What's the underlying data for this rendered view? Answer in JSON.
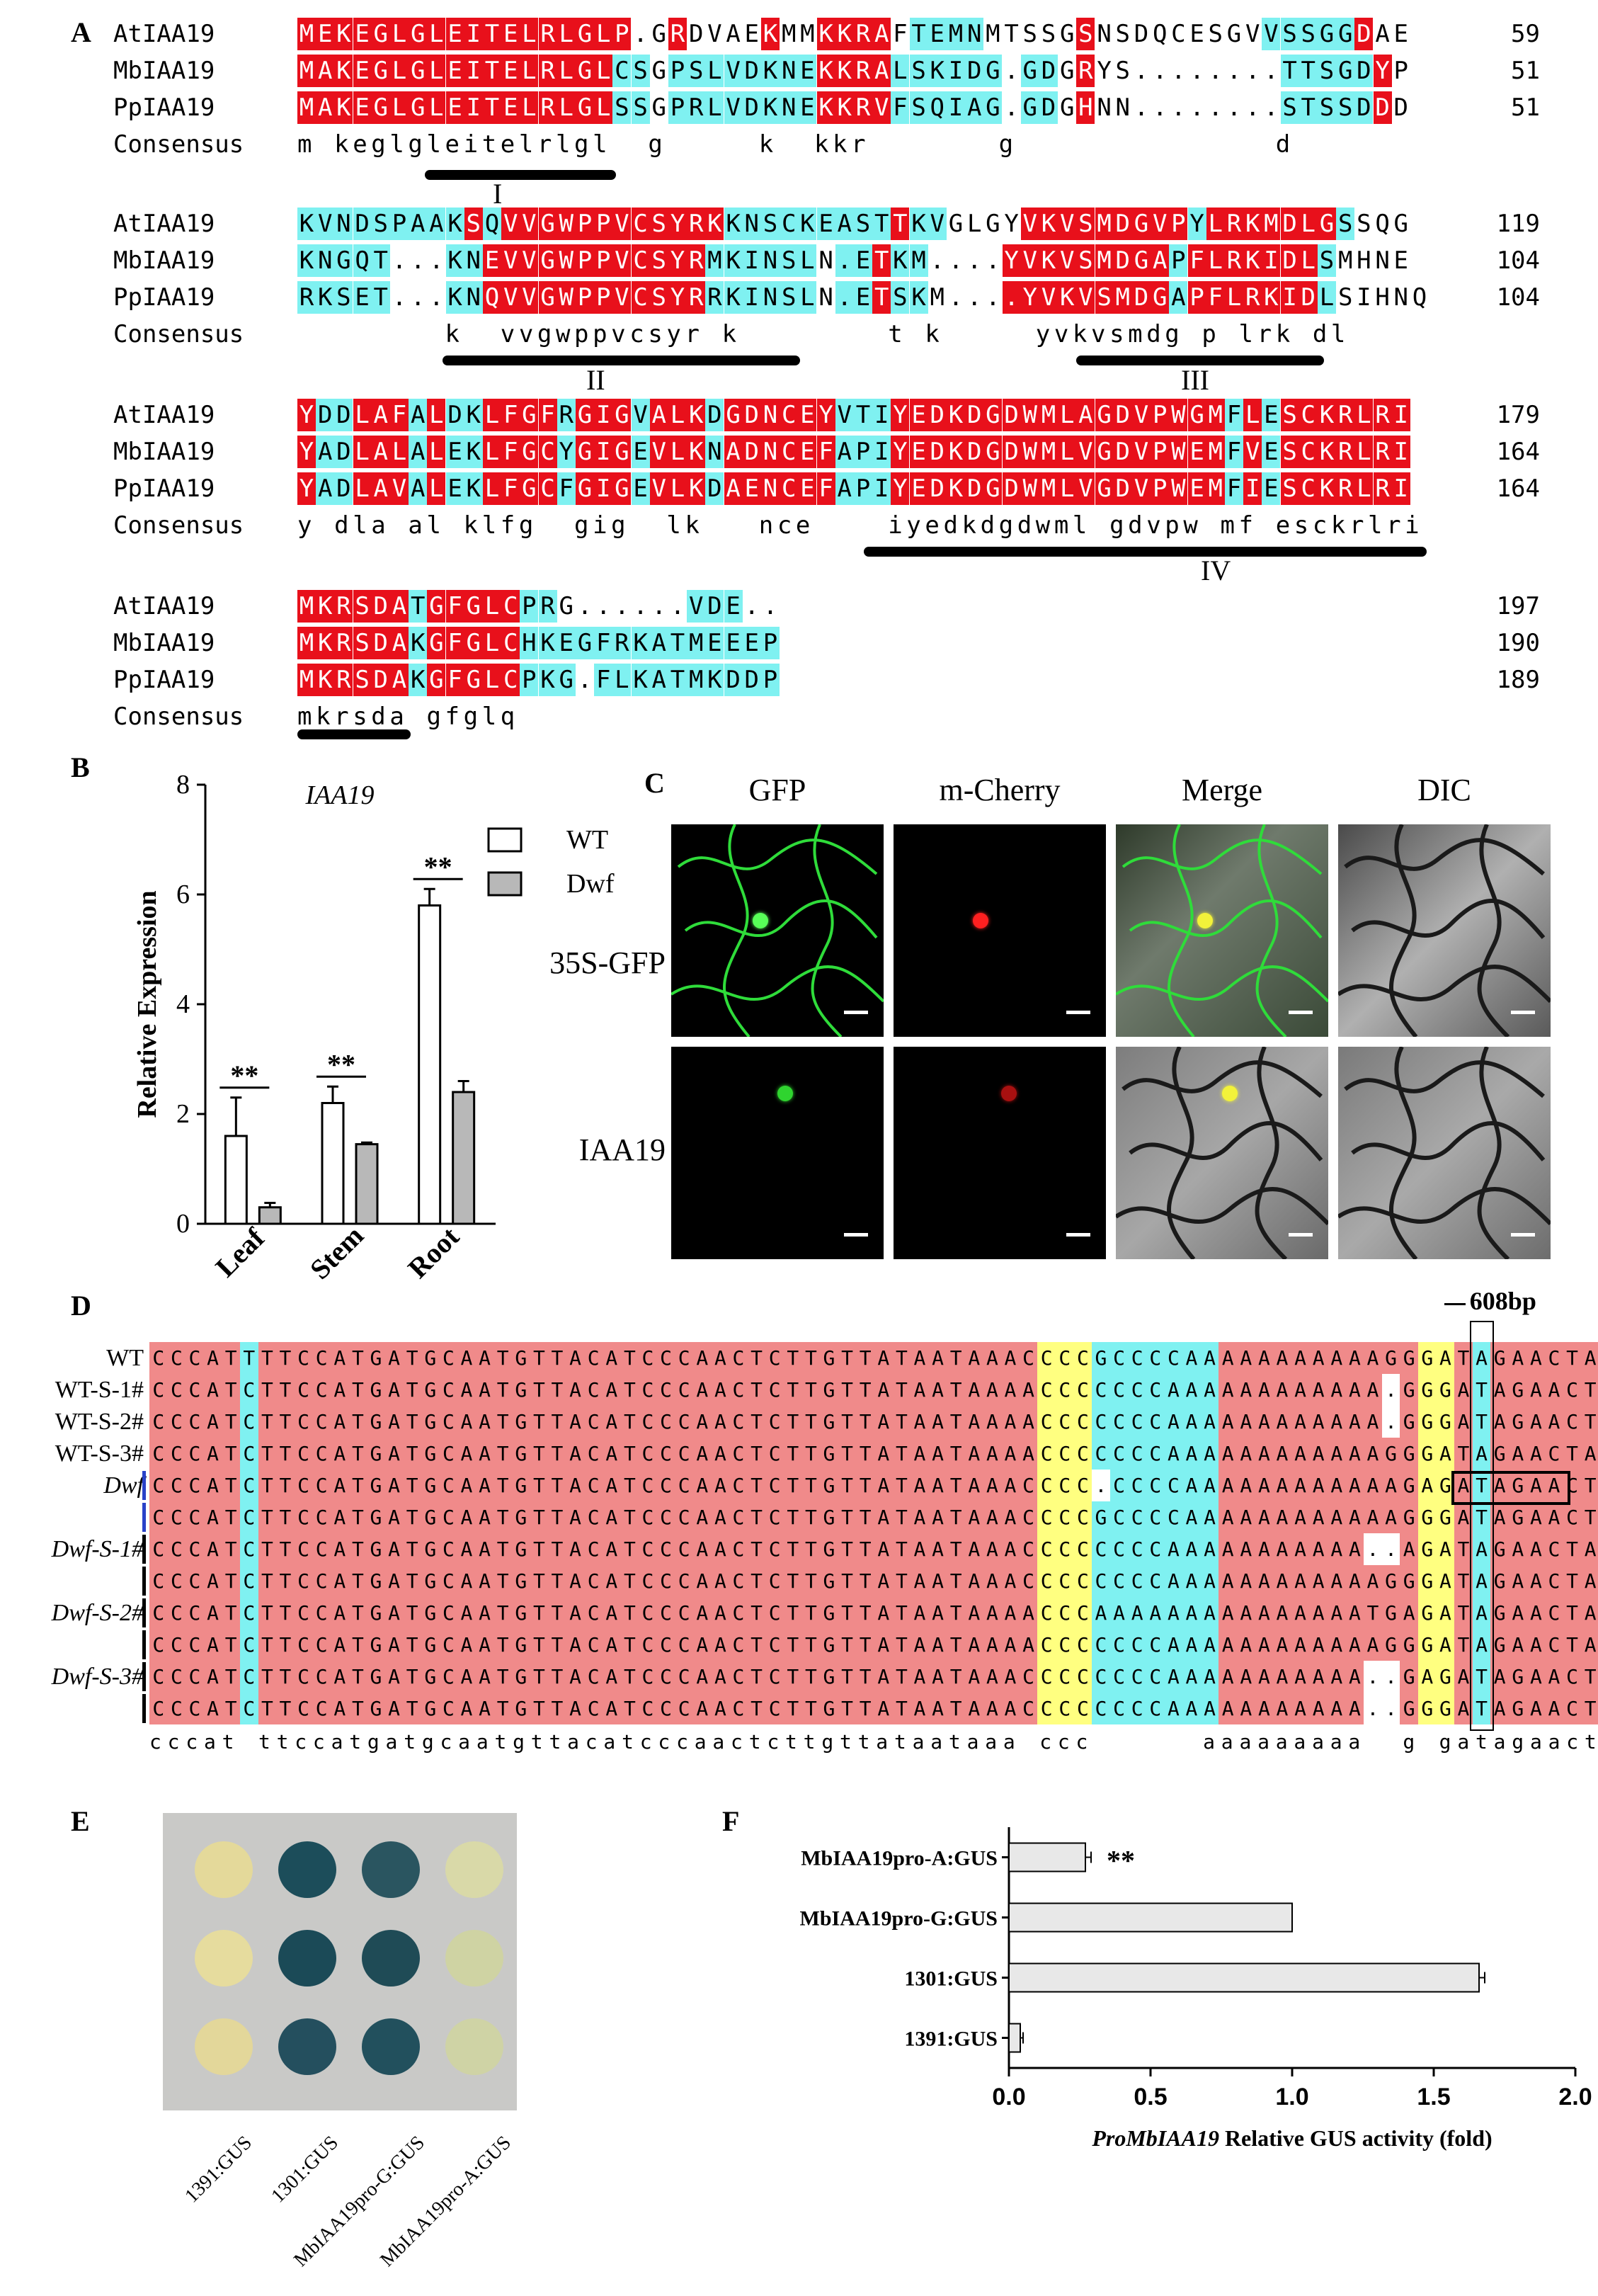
{
  "panels": {
    "A": "A",
    "B": "B",
    "C": "C",
    "D": "D",
    "E": "E",
    "F": "F"
  },
  "alignment_A": {
    "blocks": [
      {
        "rows": [
          {
            "name": "AtIAA19",
            "seq": "MEKEGLGLEITELRLGLP.GRDVAEKMMKKRAFTEMNMTSSGSNSDQCESGVVSSGGDAE",
            "num": "59",
            "mask": "rrrrrrrrrrrrrrrrrr..r....r..rrrr.cccc.....r.........cccccr.."
          },
          {
            "name": "MbIAA19",
            "seq": "MAKEGLGLEITELRLGLCSGPSLVDKNEKKRALSKIDG.GDGRYS........TTSGDYP",
            "num": "51",
            "mask": "rrrrrrrrrrrrrrrrrcc.ccccccccrrrrcccccc.cc.r..........cccccr.."
          },
          {
            "name": "PpIAA19",
            "seq": "MAKEGLGLEITELRLGLSSGPRLVDKNEKKRVFSQIAG.GDGHNN........STSSDDD",
            "num": "51",
            "mask": "rrrrrrrrrrrrrrrrrcc.ccccccccrrrrcccccc.cc.r..........cccccr.."
          }
        ],
        "consensus": "m keglgleitelrlgl  g     k  kkr       g              d   ",
        "roman": "I"
      },
      {
        "rows": [
          {
            "name": "AtIAA19",
            "seq": "KVNDSPAAKSQVVGWPPVCSYRKKNSCKEASTTKVGLGYVKVSMDGVPYLRKMDLGSSQG",
            "num": "119",
            "mask": "cccccccccrcrrrrrrrrrrrrcccccccccrcc....rrrrrrrrrcrrrrrrrc...."
          },
          {
            "name": "MbIAA19",
            "seq": "KNGQT...KNEVVGWPPVCSYRMKINSLN.ETKM....YVKVSMDGAPFLRKIDLSMHNE",
            "num": "104",
            "mask": "ccccc...ccrrrrrrrrrrrrcccccc.ccrcc....rrrrrrrrrcrrrrrrrc...."
          },
          {
            "name": "PpIAA19",
            "seq": "RKSET...KNQVVGWPPVCSYRRKINSLN.ETSKM....YVKVSMDGAPFLRKIDLSIHNQ",
            "num": "104",
            "mask": "ccccc...ccrrrrrrrrrrrrcccccc.ccrcc....rrrrrrrrrcrrrrrrrc...."
          }
        ],
        "consensus": "        k  vvgwppvcsyr k        t k     yvkvsmdg p lrk dl     ",
        "roman": "II",
        "roman2": "III"
      },
      {
        "rows": [
          {
            "name": "AtIAA19",
            "seq": "YDDLAFALDKLFGFRGIGVALKDGDNCEYVTIYEDKDGDWMLAGDVPWGMFLESCKRLRI",
            "num": "179",
            "mask": "rccrrrcrccrrrrcrrrcrrrcrrrrrrcccrrrrrrrrrrrrrrrrrrcrcrrrrrrrrr"
          },
          {
            "name": "MbIAA19",
            "seq": "YADLALALEKLFGCYGIGEVLKNADNCEFAPIYEDKDGDWMLVGDVPWEMFVESCKRLRI",
            "num": "164",
            "mask": "rccrrrcrccrrrrcrrrcrrrcrrrrrrcccrrrrrrrrrrrrrrrrrrcrcrrrrrrrrr"
          },
          {
            "name": "PpIAA19",
            "seq": "YADLAVALEKLFGCFGIGEVLKDAENCEFAPIYEDKDGDWMLVGDVPWEMFIESCKRLRI",
            "num": "164",
            "mask": "rccrrrcrccrrrrcrrrcrrrcrrrrrrcccrrrrrrrrrrrrrrrrrrcrcrrrrrrrrr"
          }
        ],
        "consensus": "y dla al klfg  gig  lk   nce    iyedkdgdwml gdvpw mf esckrlri",
        "roman": "IV"
      },
      {
        "rows": [
          {
            "name": "AtIAA19",
            "seq": "MKRSDATGFGLCPRG......VDE..",
            "num": "197",
            "mask": "rrrrrrcrrrrrcc.......ccc.."
          },
          {
            "name": "MbIAA19",
            "seq": "MKRSDAKGFGLCHKEGFRKATMEEEP",
            "num": "190",
            "mask": "rrrrrrcrrrrrcccccccccccccc"
          },
          {
            "name": "PpIAA19",
            "seq": "MKRSDAKGFGLCPKG.FLKATMKDDP",
            "num": "189",
            "mask": "rrrrrrcrrrrrccc.cccccccccc"
          }
        ],
        "consensus": "mkrsda gfglq"
      }
    ],
    "consensus_label": "Consensus"
  },
  "chart_B": {
    "chart_data": {
      "type": "bar",
      "title": "IAA19",
      "ylabel": "Relative Expression",
      "categories": [
        "Leaf",
        "Stem",
        "Root"
      ],
      "series": [
        {
          "name": "WT",
          "values": [
            1.6,
            2.2,
            5.8
          ],
          "errors": [
            0.7,
            0.3,
            0.3
          ],
          "color": "#ffffff"
        },
        {
          "name": "Dwf",
          "values": [
            0.3,
            1.45,
            2.4
          ],
          "errors": [
            0.08,
            0.03,
            0.2
          ],
          "color": "#b8b8b8"
        }
      ],
      "ylim": [
        0,
        8
      ],
      "yticks": [
        0,
        2,
        4,
        6,
        8
      ],
      "significance": [
        "**",
        "**",
        "**"
      ]
    }
  },
  "panel_C": {
    "columns": [
      "GFP",
      "m-Cherry",
      "Merge",
      "DIC"
    ],
    "rows": [
      "35S-GFP",
      "IAA19"
    ]
  },
  "panel_D": {
    "marker": "608bp",
    "rows": [
      {
        "name": "WT",
        "seq": "CCCATTTTCCATGATGCAATGTTACATCCCAACTCTTGTTATAATAAACCCCGCCCCAAAAAAAAAAAGGGATAGAACTAGGC",
        "italic": false,
        "bar": ""
      },
      {
        "name": "WT-S-1#",
        "seq": "CCCATCTTCCATGATGCAATGTTACATCCCAACTCTTGTTATAATAAAACCCCCCCAAAAAAAAAAAA.GGGATAGAACTAGGC",
        "italic": false,
        "bar": ""
      },
      {
        "name": "WT-S-2#",
        "seq": "CCCATCTTCCATGATGCAATGTTACATCCCAACTCTTGTTATAATAAAACCCCCCCAAAAAAAAAAAA.GGGATAGAACTAGGC",
        "italic": false,
        "bar": ""
      },
      {
        "name": "WT-S-3#",
        "seq": "CCCATCTTCCATGATGCAATGTTACATCCCAACTCTTGTTATAATAAAACCCCCCCAAAAAAAAAAAAGGGATAGAACTAGGC",
        "italic": false,
        "bar": ""
      },
      {
        "name": "Dwf",
        "seq": "CCCATCTTCCATGATGCAATGTTACATCCCAACTCTTGTTATAATAAACCCC.CCCCAAAAAAAAAAAAGAGATAGAACTAGGC",
        "italic": true,
        "bar": "blue"
      },
      {
        "name": "",
        "seq": "CCCATCTTCCATGATGCAATGTTACATCCCAACTCTTGTTATAATAAACCCCGCCCCAAAAAAAAAAAAGGGATAGAACTAGGC",
        "italic": false,
        "bar": "blue"
      },
      {
        "name": "Dwf-S-1#",
        "seq": "CCCATCTTCCATGATGCAATGTTACATCCCAACTCTTGTTATAATAAACCCCCCCCAAAAAAAAAAA..AGATAGAACTAGGC",
        "italic": true,
        "bar": "black"
      },
      {
        "name": "",
        "seq": "CCCATCTTCCATGATGCAATGTTACATCCCAACTCTTGTTATAATAAACCCCCCCCAAAAAAAAAAAAGGGATAGAACTAGGC",
        "italic": false,
        "bar": "black"
      },
      {
        "name": "Dwf-S-2#",
        "seq": "CCCATCTTCCATGATGCAATGTTACATCCCAACTCTTGTTATAATAAAACCCAAAAAAAAAAAAAAATGAGATAGAACTAGGC",
        "italic": true,
        "bar": "black"
      },
      {
        "name": "",
        "seq": "CCCATCTTCCATGATGCAATGTTACATCCCAACTCTTGTTATAATAAAACCCCCCCAAAAAAAAAAAAGGGATAGAACTAGGC",
        "italic": false,
        "bar": "black"
      },
      {
        "name": "Dwf-S-3#",
        "seq": "CCCATCTTCCATGATGCAATGTTACATCCCAACTCTTGTTATAATAAACCCCCCCCAAAAAAAAAAA..GAGATAGAACTAGGC",
        "italic": true,
        "bar": "black"
      },
      {
        "name": "",
        "seq": "CCCATCTTCCATGATGCAATGTTACATCCCAACTCTTGTTATAATAAACCCCCCCCAAAAAAAAAAA..GGGATAGAACTAGGC",
        "italic": false,
        "bar": "black"
      }
    ],
    "consensus": "cccat ttccatgatgcaatgttacatcccaactcttgttataataaa ccc      aaaaaaaaa  g gatagaactaggc"
  },
  "panel_E": {
    "labels": [
      "1391:GUS",
      "1301:GUS",
      "MbIAA19pro-G:GUS",
      "MbIAA19pro-A:GUS"
    ]
  },
  "chart_F": {
    "chart_data": {
      "type": "bar",
      "orientation": "horizontal",
      "categories": [
        "MbIAA19pro-A:GUS",
        "MbIAA19pro-G:GUS",
        "1301:GUS",
        "1391:GUS"
      ],
      "values": [
        0.27,
        1.0,
        1.66,
        0.04
      ],
      "errors": [
        0.02,
        0,
        0.02,
        0.01
      ],
      "significance": [
        "**",
        "",
        "",
        ""
      ],
      "xlabel_italic": "ProMbIAA19",
      "xlabel": " Relative GUS activity (fold)",
      "xlim": [
        0,
        2.0
      ],
      "xticks": [
        "0.0",
        "0.5",
        "1.0",
        "1.5",
        "2.0"
      ]
    }
  }
}
